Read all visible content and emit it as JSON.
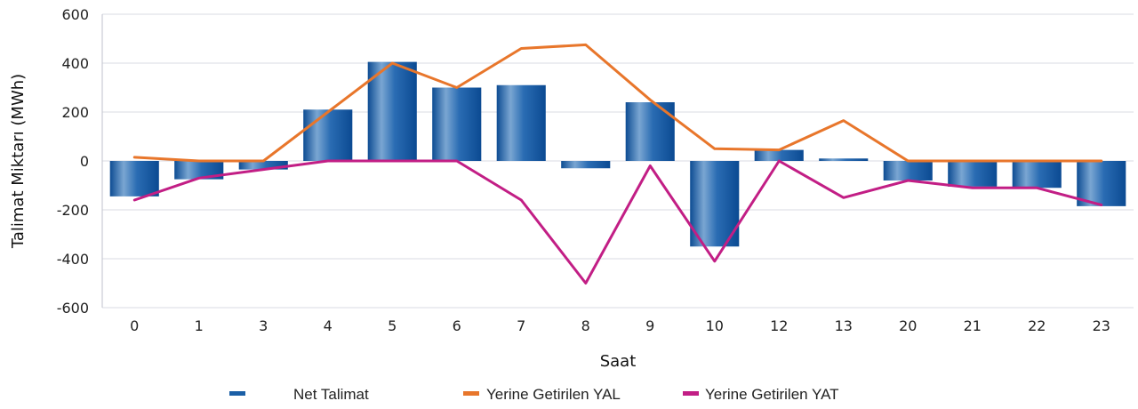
{
  "chart_data": {
    "type": "bar",
    "xlabel": "Saat",
    "ylabel": "Talimat Miktarı (MWh)",
    "ylim": [
      -600,
      600
    ],
    "yticks": [
      -600,
      -400,
      -200,
      0,
      200,
      400,
      600
    ],
    "categories": [
      "0",
      "1",
      "3",
      "4",
      "5",
      "6",
      "7",
      "8",
      "9",
      "10",
      "12",
      "13",
      "20",
      "21",
      "22",
      "23"
    ],
    "grid": true,
    "legend_position": "bottom",
    "series": [
      {
        "name": "Net Talimat",
        "type": "bar",
        "color": "#1a5fa6",
        "values": [
          -145,
          -75,
          -35,
          210,
          405,
          300,
          310,
          -30,
          240,
          -350,
          45,
          10,
          -80,
          -105,
          -110,
          -185
        ]
      },
      {
        "name": "Yerine Getirilen YAL",
        "type": "line",
        "color": "#e8762b",
        "values": [
          15,
          0,
          0,
          200,
          400,
          300,
          460,
          475,
          250,
          50,
          45,
          165,
          0,
          0,
          0,
          0
        ]
      },
      {
        "name": "Yerine Getirilen YAT",
        "type": "line",
        "color": "#c21e85",
        "values": [
          -160,
          -70,
          -35,
          0,
          0,
          0,
          -160,
          -500,
          -20,
          -410,
          0,
          -150,
          -80,
          -110,
          -110,
          -180
        ]
      }
    ]
  }
}
